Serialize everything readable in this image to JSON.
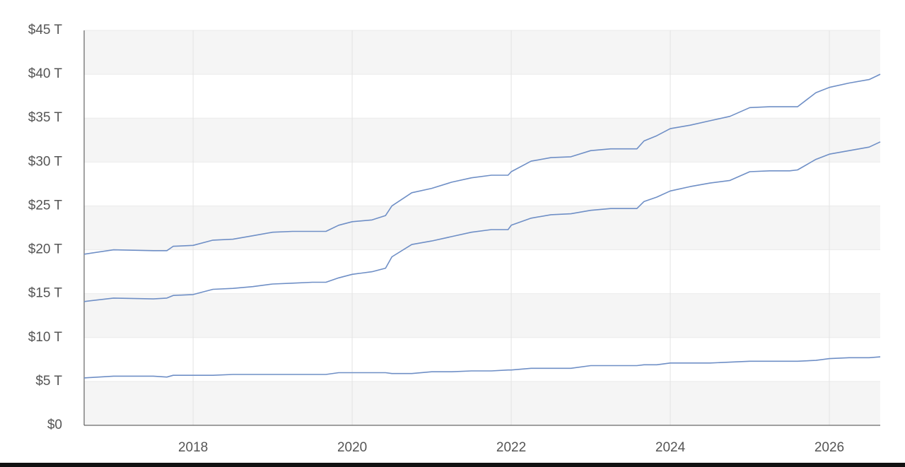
{
  "chart_data": {
    "type": "line",
    "x": [
      2016.63,
      2017.0,
      2017.5,
      2017.67,
      2017.75,
      2018.0,
      2018.25,
      2018.5,
      2018.75,
      2019.0,
      2019.25,
      2019.5,
      2019.67,
      2019.83,
      2020.0,
      2020.25,
      2020.42,
      2020.5,
      2020.75,
      2021.0,
      2021.25,
      2021.5,
      2021.75,
      2021.96,
      2022.0,
      2022.25,
      2022.5,
      2022.75,
      2023.0,
      2023.25,
      2023.5,
      2023.58,
      2023.67,
      2023.83,
      2024.0,
      2024.25,
      2024.5,
      2024.75,
      2025.0,
      2025.25,
      2025.5,
      2025.6,
      2025.83,
      2026.0,
      2026.25,
      2026.5,
      2026.64
    ],
    "series": [
      {
        "color": "#6f8fc6",
        "values": [
          19.5,
          20.0,
          19.9,
          19.9,
          20.4,
          20.5,
          21.1,
          21.2,
          21.6,
          22.0,
          22.1,
          22.1,
          22.1,
          22.8,
          23.2,
          23.4,
          23.9,
          25.0,
          26.5,
          27.0,
          27.7,
          28.2,
          28.5,
          28.5,
          28.9,
          30.1,
          30.5,
          30.6,
          31.3,
          31.5,
          31.5,
          31.5,
          32.4,
          33.0,
          33.8,
          34.2,
          34.7,
          35.2,
          36.2,
          36.3,
          36.3,
          36.3,
          37.9,
          38.5,
          39.0,
          39.4,
          40.0
        ]
      },
      {
        "color": "#6f8fc6",
        "values": [
          14.1,
          14.5,
          14.4,
          14.5,
          14.8,
          14.9,
          15.5,
          15.6,
          15.8,
          16.1,
          16.2,
          16.3,
          16.3,
          16.8,
          17.2,
          17.5,
          17.9,
          19.2,
          20.6,
          21.0,
          21.5,
          22.0,
          22.3,
          22.3,
          22.8,
          23.6,
          24.0,
          24.1,
          24.5,
          24.7,
          24.7,
          24.7,
          25.5,
          26.0,
          26.7,
          27.2,
          27.6,
          27.9,
          28.9,
          29.0,
          29.0,
          29.1,
          30.3,
          30.9,
          31.3,
          31.7,
          32.3
        ]
      },
      {
        "color": "#6f8fc6",
        "values": [
          5.4,
          5.6,
          5.6,
          5.5,
          5.7,
          5.7,
          5.7,
          5.8,
          5.8,
          5.8,
          5.8,
          5.8,
          5.8,
          6.0,
          6.0,
          6.0,
          6.0,
          5.9,
          5.9,
          6.1,
          6.1,
          6.2,
          6.2,
          6.3,
          6.3,
          6.5,
          6.5,
          6.5,
          6.8,
          6.8,
          6.8,
          6.8,
          6.9,
          6.9,
          7.1,
          7.1,
          7.1,
          7.2,
          7.3,
          7.3,
          7.3,
          7.3,
          7.4,
          7.6,
          7.7,
          7.7,
          7.8
        ]
      }
    ],
    "xlim": [
      2016.63,
      2026.64
    ],
    "xticks": [
      2018,
      2020,
      2022,
      2024,
      2026
    ],
    "ylim": [
      0,
      45
    ],
    "yticks": [
      {
        "value": 0,
        "label": "$0"
      },
      {
        "value": 5,
        "label": "$5 T"
      },
      {
        "value": 10,
        "label": "$10 T"
      },
      {
        "value": 15,
        "label": "$15 T"
      },
      {
        "value": 20,
        "label": "$20 T"
      },
      {
        "value": 25,
        "label": "$25 T"
      },
      {
        "value": 30,
        "label": "$30 T"
      },
      {
        "value": 35,
        "label": "$35 T"
      },
      {
        "value": 40,
        "label": "$40 T"
      },
      {
        "value": 45,
        "label": "$45 T"
      }
    ],
    "grid": true,
    "banded": true
  }
}
